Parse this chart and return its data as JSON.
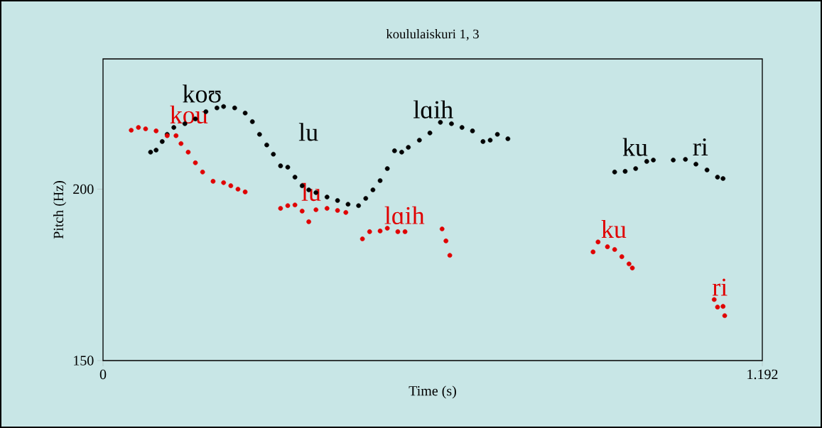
{
  "chart_data": {
    "type": "scatter",
    "title": "koululaiskuri 1, 3",
    "xlabel": "Time (s)",
    "ylabel": "Pitch (Hz)",
    "xlim": [
      0,
      1.192
    ],
    "ylim": [
      150,
      238
    ],
    "xticks": [
      0,
      1.192
    ],
    "yticks": [
      150,
      200
    ],
    "grid": false,
    "marker": "circle",
    "series": [
      {
        "name": "koʊ",
        "color": "#000000",
        "x": [
          0.086,
          0.096,
          0.107,
          0.116,
          0.128,
          0.148,
          0.167,
          0.186,
          0.206,
          0.218,
          0.238,
          0.257,
          0.27,
          0.283
        ],
        "values": [
          210.8,
          211.4,
          213.9,
          216.0,
          218.0,
          219.1,
          220.5,
          222.6,
          223.7,
          224.1,
          223.7,
          222.2,
          219.7,
          216.0
        ]
      },
      {
        "name": "lu",
        "color": "#000000",
        "x": [
          0.296,
          0.308,
          0.321,
          0.334,
          0.347,
          0.36,
          0.372,
          0.385,
          0.405,
          0.424,
          0.443,
          0.462
        ],
        "values": [
          212.9,
          210.2,
          206.8,
          206.4,
          203.5,
          201.0,
          199.8,
          199.0,
          197.7,
          196.7,
          195.6,
          195.2
        ]
      },
      {
        "name": "lɑih",
        "color": "#000000",
        "x": [
          0.475,
          0.488,
          0.501,
          0.514,
          0.527,
          0.54,
          0.552,
          0.572,
          0.591,
          0.61,
          0.63,
          0.649,
          0.668,
          0.687,
          0.7,
          0.713,
          0.732
        ],
        "values": [
          197.3,
          199.8,
          202.5,
          206.0,
          211.2,
          210.8,
          212.2,
          214.3,
          216.4,
          219.5,
          219.1,
          218.0,
          217.0,
          213.9,
          214.3,
          216.0,
          214.7
        ]
      },
      {
        "name": "ku",
        "color": "#000000",
        "x": [
          0.925,
          0.944,
          0.963,
          0.983,
          0.995
        ],
        "values": [
          205.0,
          205.2,
          206.0,
          208.1,
          208.5
        ]
      },
      {
        "name": "ri",
        "color": "#000000",
        "x": [
          1.031,
          1.053,
          1.072,
          1.092,
          1.111,
          1.121
        ],
        "values": [
          208.5,
          208.7,
          207.3,
          205.6,
          203.5,
          203.1
        ]
      },
      {
        "name": "kou",
        "color": "#e00000",
        "x": [
          0.051,
          0.064,
          0.077,
          0.096,
          0.116,
          0.132,
          0.141,
          0.154,
          0.167,
          0.18,
          0.199,
          0.218,
          0.231,
          0.244,
          0.257
        ],
        "values": [
          217.2,
          218.0,
          217.6,
          217.0,
          215.6,
          215.6,
          213.3,
          210.8,
          207.7,
          205.0,
          202.3,
          201.9,
          201.0,
          200.0,
          199.2
        ]
      },
      {
        "name": "lu",
        "color": "#e00000",
        "x": [
          0.321,
          0.334,
          0.347,
          0.36,
          0.372,
          0.385,
          0.405,
          0.424,
          0.439
        ],
        "values": [
          194.4,
          195.2,
          195.4,
          193.6,
          190.5,
          194.0,
          194.4,
          193.8,
          193.2
        ]
      },
      {
        "name": "lɑih",
        "color": "#e00000",
        "x": [
          0.469,
          0.482,
          0.501,
          0.514,
          0.533,
          0.546,
          0.613,
          0.62,
          0.627
        ],
        "values": [
          185.5,
          187.6,
          187.8,
          188.6,
          187.6,
          187.6,
          188.4,
          184.9,
          180.7
        ]
      },
      {
        "name": "ku",
        "color": "#e00000",
        "x": [
          0.886,
          0.895,
          0.912,
          0.925,
          0.938,
          0.951,
          0.957
        ],
        "values": [
          181.7,
          184.6,
          183.2,
          182.4,
          180.3,
          178.2,
          177.0
        ]
      },
      {
        "name": "ri",
        "color": "#e00000",
        "x": [
          1.105,
          1.111,
          1.121,
          1.124
        ],
        "values": [
          167.8,
          165.6,
          165.8,
          163.1
        ]
      }
    ]
  }
}
